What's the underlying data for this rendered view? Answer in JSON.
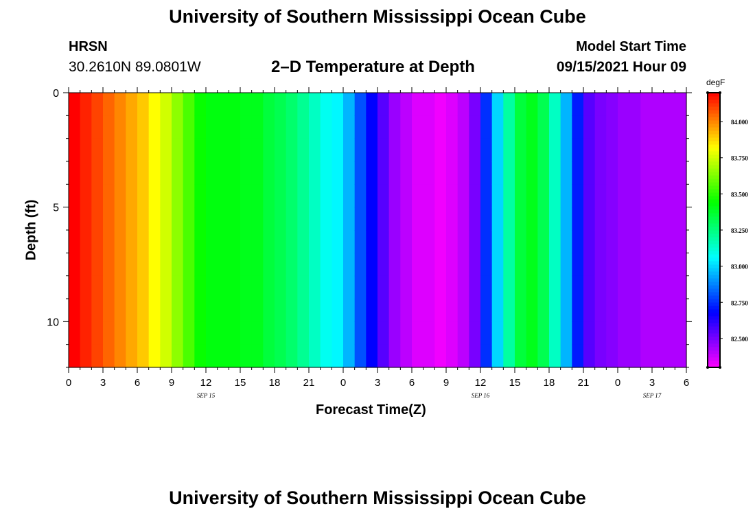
{
  "header": {
    "title": "University of Southern Mississippi Ocean Cube",
    "station": "HRSN",
    "coords": "30.2610N  89.0801W",
    "subtitle": "2–D Temperature at Depth",
    "model_start_label": "Model Start Time",
    "model_start_value": "09/15/2021 Hour 09"
  },
  "footer": {
    "title": "University of Southern Mississippi Ocean Cube"
  },
  "chart_data": {
    "type": "heatmap",
    "title": "2–D Temperature at Depth",
    "xlabel": "Forecast Time(Z)",
    "ylabel": "Depth (ft)",
    "x_ticks": [
      "0",
      "3",
      "6",
      "9",
      "12",
      "15",
      "18",
      "21",
      "0",
      "3",
      "6",
      "9",
      "12",
      "15",
      "18",
      "21",
      "0",
      "3",
      "6"
    ],
    "date_labels": [
      {
        "label": "SEP 15",
        "hour_index": 12
      },
      {
        "label": "SEP 16",
        "hour_index": 36
      },
      {
        "label": "SEP 17",
        "hour_index": 51
      }
    ],
    "x_range_hours": [
      0,
      54
    ],
    "y_ticks": [
      0,
      5,
      10
    ],
    "y_range": [
      0,
      12
    ],
    "colorbar": {
      "unit": "degF",
      "ticks": [
        "84.000",
        "83.750",
        "83.500",
        "83.250",
        "83.000",
        "82.750",
        "82.500"
      ],
      "tick_values": [
        84.0,
        83.75,
        83.5,
        83.25,
        83.0,
        82.75,
        82.5
      ],
      "range": [
        82.3,
        84.2
      ]
    },
    "surface_temperature_by_hour": [
      84.2,
      84.15,
      84.1,
      84.05,
      84.0,
      83.95,
      83.9,
      83.82,
      83.75,
      83.65,
      83.55,
      83.45,
      83.42,
      83.42,
      83.42,
      83.4,
      83.4,
      83.35,
      83.32,
      83.28,
      83.22,
      83.15,
      83.08,
      83.05,
      82.95,
      82.8,
      82.68,
      82.55,
      82.45,
      82.4,
      82.35,
      82.35,
      82.32,
      82.35,
      82.4,
      82.5,
      82.75,
      83.0,
      83.2,
      83.35,
      83.4,
      83.32,
      83.15,
      82.95,
      82.72,
      82.55,
      82.5,
      82.48,
      82.45,
      82.45,
      82.42,
      82.42,
      82.42,
      82.42
    ],
    "depth_profile_note": ""
  }
}
